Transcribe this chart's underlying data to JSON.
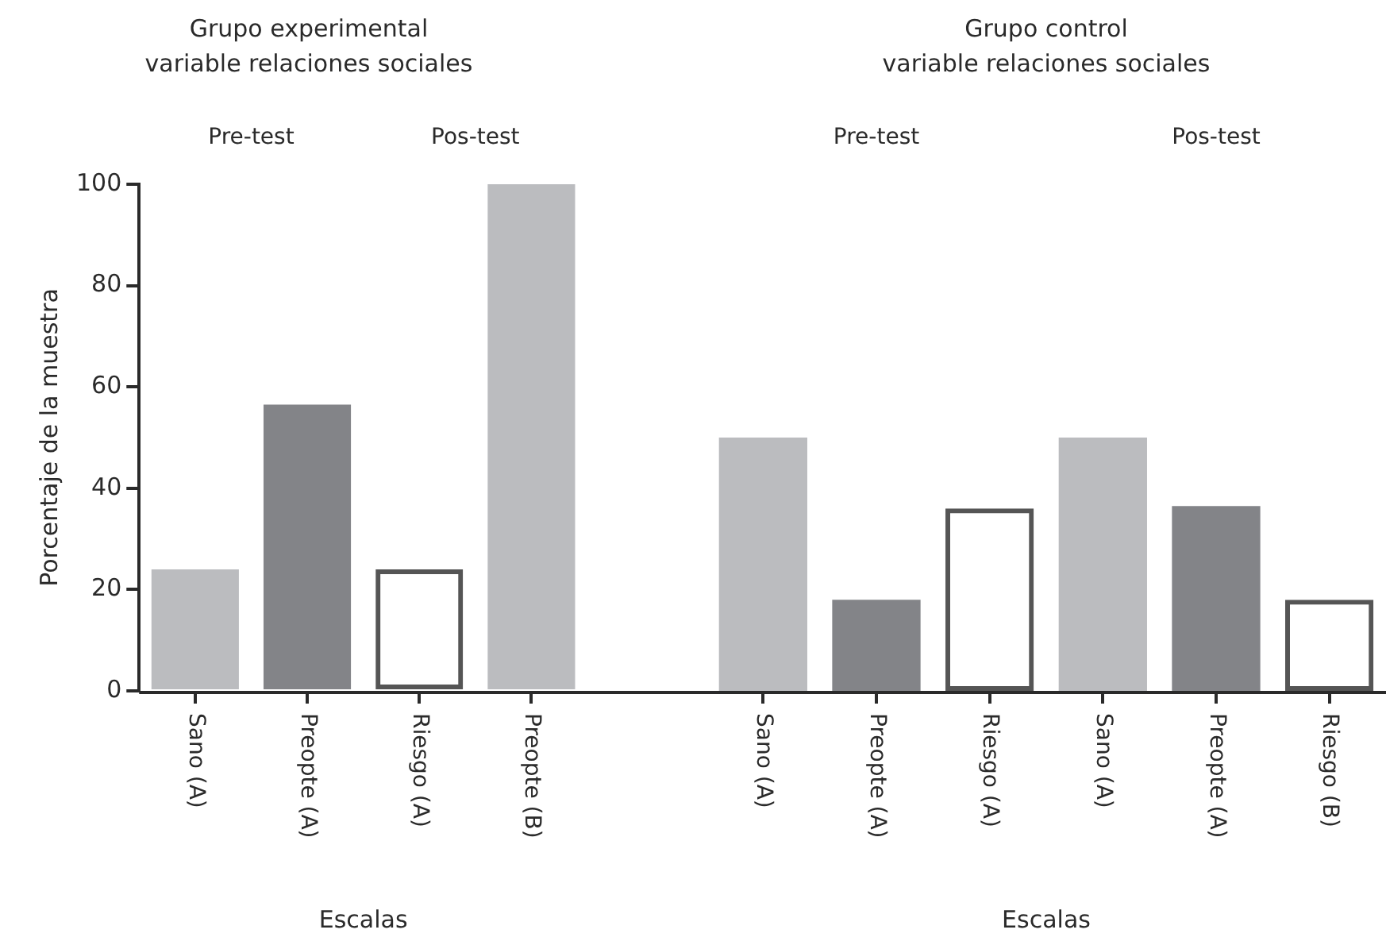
{
  "chart_data": [
    {
      "type": "bar",
      "title": "Grupo experimental",
      "subtitle": "variable relaciones sociales",
      "annotations": [
        "Pre-test",
        "Pos-test"
      ],
      "xlabel": "Escalas",
      "ylabel": "Porcentaje de la muestra",
      "categories": [
        "Sano (A)",
        "Preopte (A)",
        "Riesgo (A)",
        "Preopte (B)"
      ],
      "values": [
        24,
        56.5,
        24,
        100
      ],
      "colors": [
        "#bbbcbf",
        "#838488",
        "#555555",
        "#bbbcbf"
      ],
      "ylim": [
        0,
        100
      ],
      "yticks": [
        0,
        20,
        40,
        60,
        80,
        100
      ]
    },
    {
      "type": "bar",
      "title": "Grupo control",
      "subtitle": "variable relaciones sociales",
      "annotations": [
        "Pre-test",
        "Pos-test"
      ],
      "xlabel": "Escalas",
      "categories": [
        "Sano (A)",
        "Preopte (A)",
        "Riesgo (A)",
        "Sano (A)",
        "Preopte (A)",
        "Riesgo (B)"
      ],
      "values": [
        50,
        18,
        36,
        50,
        36.5,
        18
      ],
      "colors": [
        "#bbbcbf",
        "#838488",
        "#555555",
        "#bbbcbf",
        "#838488",
        "#555555"
      ],
      "ylim": [
        0,
        100
      ],
      "yticks": [
        0,
        20,
        40,
        60,
        80,
        100
      ],
      "tick_labels": "x"
    }
  ]
}
